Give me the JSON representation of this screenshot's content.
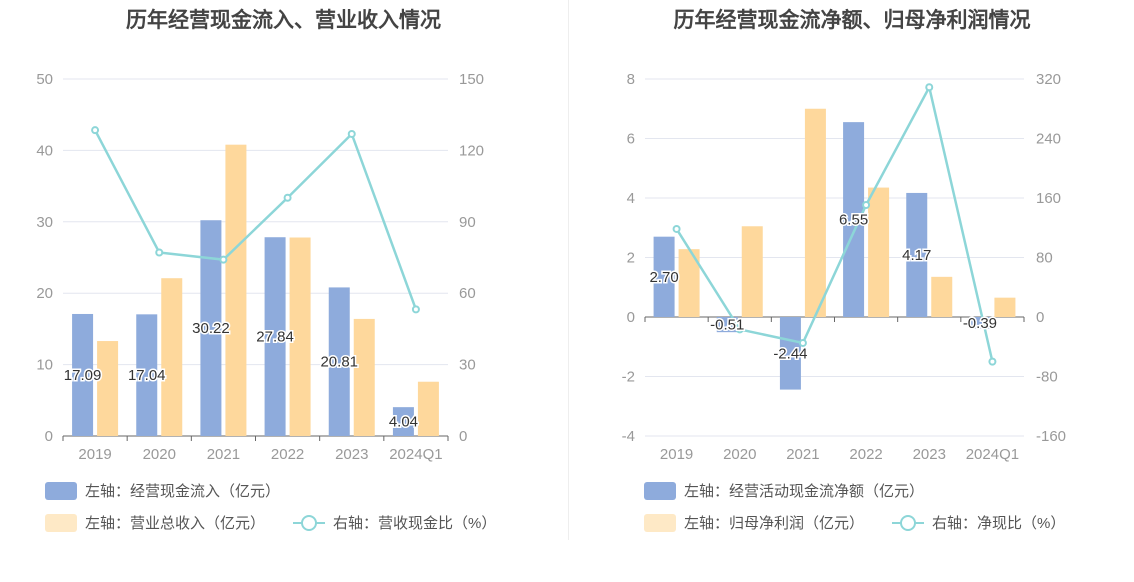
{
  "colors": {
    "blue": "#8eabdc",
    "orange": "#fed89c",
    "line": "#8dd6d8",
    "grid": "#e3e6ef",
    "axis_text": "#999999"
  },
  "left_panel": {
    "title": "历年经营现金流入、营业收入情况",
    "legend": {
      "bar1": "左轴：经营现金流入（亿元）",
      "bar2": "左轴：营业总收入（亿元）",
      "line": "右轴：营收现金比（%）"
    }
  },
  "right_panel": {
    "title": "历年经营现金流净额、归母净利润情况",
    "legend": {
      "bar1": "左轴：经营活动现金流净额（亿元）",
      "bar2": "左轴：归母净利润（亿元）",
      "line": "右轴：净现比（%）"
    }
  },
  "chart_data": [
    {
      "type": "bar",
      "title": "历年经营现金流入、营业收入情况",
      "categories": [
        "2019",
        "2020",
        "2021",
        "2022",
        "2023",
        "2024Q1"
      ],
      "ylim_left": [
        0,
        50
      ],
      "ylim_right": [
        0,
        150
      ],
      "yticks_left": [
        "0",
        "10",
        "20",
        "30",
        "40",
        "50"
      ],
      "yticks_right": [
        "0",
        "30",
        "60",
        "90",
        "120",
        "150"
      ],
      "series": [
        {
          "name": "左轴：经营现金流入（亿元）",
          "axis": "left",
          "kind": "bar",
          "values": [
            17.09,
            17.04,
            30.22,
            27.84,
            20.81,
            4.04
          ],
          "labels": [
            "17.09",
            "17.04",
            "30.22",
            "27.84",
            "20.81",
            "4.04"
          ]
        },
        {
          "name": "左轴：营业总收入（亿元）",
          "axis": "left",
          "kind": "bar",
          "values": [
            13.3,
            22.1,
            40.8,
            27.8,
            16.4,
            7.6
          ]
        },
        {
          "name": "右轴：营收现金比（%）",
          "axis": "right",
          "kind": "line",
          "values": [
            128.5,
            77.1,
            74.1,
            100.1,
            126.9,
            53.2
          ]
        }
      ],
      "grid": true
    },
    {
      "type": "bar",
      "title": "历年经营现金流净额、归母净利润情况",
      "categories": [
        "2019",
        "2020",
        "2021",
        "2022",
        "2023",
        "2024Q1"
      ],
      "ylim_left": [
        -4,
        8
      ],
      "ylim_right": [
        -160,
        320
      ],
      "yticks_left": [
        "-4",
        "-2",
        "0",
        "2",
        "4",
        "6",
        "8"
      ],
      "yticks_right": [
        "-160",
        "-80",
        "0",
        "80",
        "160",
        "240",
        "320"
      ],
      "series": [
        {
          "name": "左轴：经营活动现金流净额（亿元）",
          "axis": "left",
          "kind": "bar",
          "values": [
            2.7,
            -0.51,
            -2.44,
            6.55,
            4.17,
            -0.39
          ],
          "labels": [
            "2.70",
            "-0.51",
            "-2.44",
            "6.55",
            "4.17",
            "-0.39"
          ]
        },
        {
          "name": "左轴：归母净利润（亿元）",
          "axis": "left",
          "kind": "bar",
          "values": [
            2.28,
            3.05,
            7.0,
            4.35,
            1.35,
            0.65
          ]
        },
        {
          "name": "右轴：净现比（%）",
          "axis": "right",
          "kind": "line",
          "values": [
            118.4,
            -16.7,
            -34.9,
            150.6,
            308.9,
            -60.0
          ]
        }
      ],
      "grid": true
    }
  ]
}
